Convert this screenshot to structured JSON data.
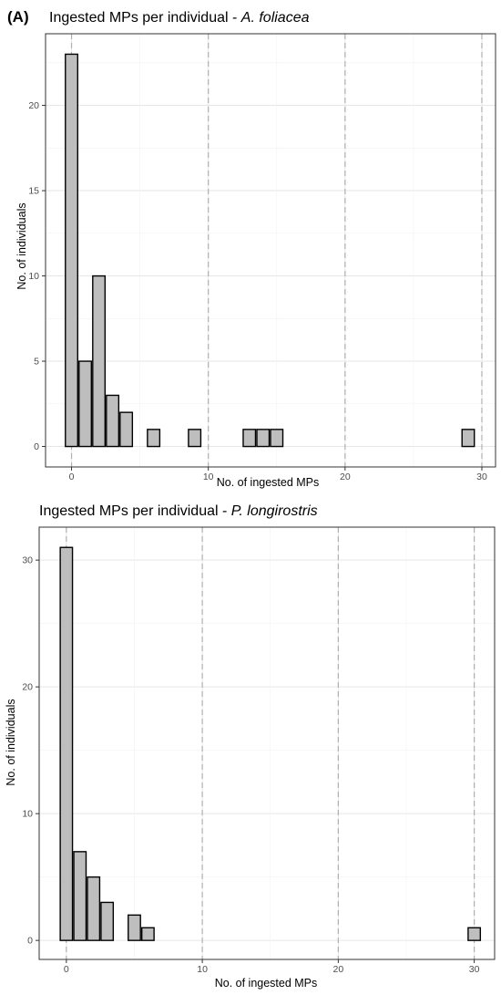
{
  "figure": {
    "panel_label": "(A)"
  },
  "chart_data": [
    {
      "type": "bar",
      "title_prefix": "Ingested MPs per individual - ",
      "title_species": "A. foliacea",
      "xlabel": "No. of ingested MPs",
      "ylabel": "No. of individuals",
      "xlim": [
        -1.9,
        31.0
      ],
      "ylim": [
        -1.2,
        24.2
      ],
      "x_ticks": [
        0,
        10,
        20,
        30
      ],
      "y_ticks": [
        0,
        5,
        10,
        15,
        20
      ],
      "x_tick_labels": [
        "0",
        "10",
        "20",
        "30"
      ],
      "y_tick_labels": [
        "0",
        "5",
        "10",
        "15",
        "20"
      ],
      "dashed_vlines": [
        0,
        10,
        20,
        30
      ],
      "grid": true,
      "bar_color": "#bebebe",
      "bar_outline": "#000000",
      "series": [
        {
          "x": [
            0,
            1,
            2,
            3,
            4,
            6,
            9,
            13,
            14,
            15,
            29
          ],
          "values": [
            23,
            5,
            10,
            3,
            2,
            1,
            1,
            1,
            1,
            1,
            1
          ]
        }
      ]
    },
    {
      "type": "bar",
      "title_prefix": "Ingested MPs per individual - ",
      "title_species": "P. longirostris",
      "xlabel": "No. of ingested MPs",
      "ylabel": "No. of individuals",
      "xlim": [
        -2.0,
        31.5
      ],
      "ylim": [
        -1.5,
        32.6
      ],
      "x_ticks": [
        0,
        10,
        20,
        30
      ],
      "y_ticks": [
        0,
        10,
        20,
        30
      ],
      "x_tick_labels": [
        "0",
        "10",
        "20",
        "30"
      ],
      "y_tick_labels": [
        "0",
        "10",
        "20",
        "30"
      ],
      "dashed_vlines": [
        0,
        10,
        20,
        30
      ],
      "grid": true,
      "bar_color": "#bebebe",
      "bar_outline": "#000000",
      "series": [
        {
          "x": [
            0,
            1,
            2,
            3,
            5,
            6,
            30
          ],
          "values": [
            31,
            7,
            5,
            3,
            2,
            1,
            1
          ]
        }
      ]
    }
  ]
}
